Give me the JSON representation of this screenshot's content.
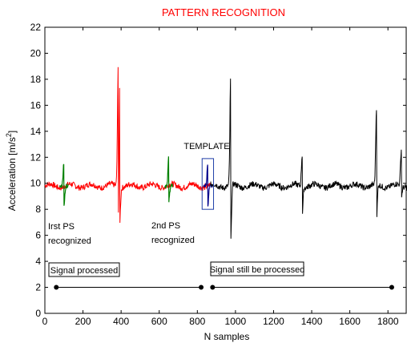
{
  "chart_data": {
    "type": "line",
    "title": "PATTERN RECOGNITION",
    "title_color": "#ff0000",
    "xlabel": "N samples",
    "ylabel_base": "Acceleration [m/s",
    "ylabel_sup": "2",
    "ylabel_tail": "]",
    "xlim": [
      0,
      1900
    ],
    "ylim": [
      0,
      22
    ],
    "xticks": [
      0,
      200,
      400,
      600,
      800,
      1000,
      1200,
      1400,
      1600,
      1800
    ],
    "yticks": [
      0,
      2,
      4,
      6,
      8,
      10,
      12,
      14,
      16,
      18,
      20,
      22
    ],
    "grid": false,
    "baseline": 9.8,
    "series": [
      {
        "color": "#ff0000",
        "x_range": [
          0,
          870
        ],
        "events": [
          {
            "x": 385,
            "up": 18.8,
            "down": 5.9
          },
          {
            "x": 393,
            "up": 18.5,
            "down": 7.5
          }
        ]
      },
      {
        "color": "#008000",
        "x_range": [
          0,
          870
        ],
        "events": [
          {
            "x": 100,
            "up": 11.6,
            "down": 8.2
          },
          {
            "x": 650,
            "up": 12.0,
            "down": 8.6
          }
        ]
      },
      {
        "color": "#00008b",
        "x_range": [
          0,
          870
        ],
        "events": [
          {
            "x": 855,
            "up": 11.4,
            "down": 8.3
          }
        ]
      },
      {
        "color": "#000000",
        "x_range": [
          870,
          1900
        ],
        "events": [
          {
            "x": 975,
            "up": 18.1,
            "down": 5.4
          },
          {
            "x": 1350,
            "up": 12.3,
            "down": 7.6
          },
          {
            "x": 1740,
            "up": 15.7,
            "down": 7.1
          },
          {
            "x": 1870,
            "up": 12.6,
            "down": 8.9
          }
        ]
      }
    ],
    "annotations": {
      "template_label": "TEMPLATE",
      "template_color": "#1f3fa8",
      "template_box": {
        "x0": 825,
        "x1": 885,
        "y0": 8.0,
        "y1": 11.9
      },
      "first_recognized": [
        "Irst PS",
        "recognized"
      ],
      "second_recognized": [
        "2nd PS",
        "recognized"
      ],
      "processed_label": "Signal processed",
      "processed_range": [
        60,
        820
      ],
      "unprocessed_label": "Signal still be processed",
      "unprocessed_range": [
        880,
        1820
      ],
      "timeline_y": 2.0
    }
  }
}
